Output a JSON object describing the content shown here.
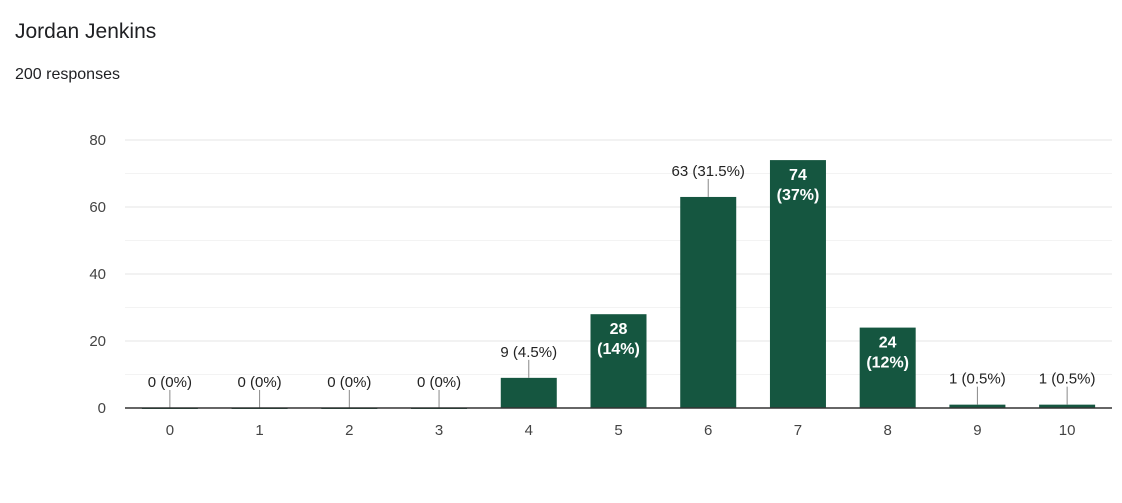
{
  "header": {
    "title": "Jordan Jenkins",
    "responses": "200 responses"
  },
  "chart_data": {
    "type": "bar",
    "title": "Jordan Jenkins",
    "categories": [
      "0",
      "1",
      "2",
      "3",
      "4",
      "5",
      "6",
      "7",
      "8",
      "9",
      "10"
    ],
    "values": [
      0,
      0,
      0,
      0,
      9,
      28,
      63,
      74,
      24,
      1,
      1
    ],
    "labels": [
      "0 (0%)",
      "0 (0%)",
      "0 (0%)",
      "0 (0%)",
      "9 (4.5%)",
      "28 (14%)",
      "63 (31.5%)",
      "74 (37%)",
      "24 (12%)",
      "1 (0.5%)",
      "1 (0.5%)"
    ],
    "label_position": [
      "outside",
      "outside",
      "outside",
      "outside",
      "outside",
      "inside",
      "outside",
      "inside",
      "inside",
      "outside",
      "outside"
    ],
    "yticks": [
      0,
      20,
      40,
      60,
      80
    ],
    "ylim": [
      0,
      80
    ],
    "grid": true,
    "bar_color": "#155640"
  }
}
